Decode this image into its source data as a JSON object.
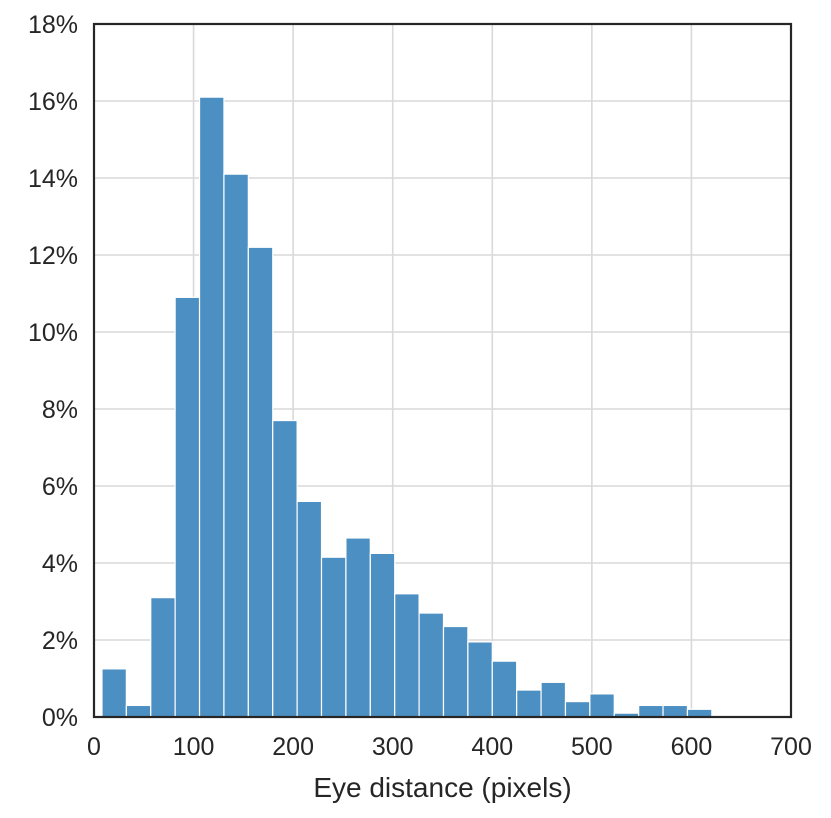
{
  "chart_data": {
    "type": "bar",
    "title": "",
    "xlabel": "Eye distance (pixels)",
    "ylabel": "",
    "xlim": [
      0,
      700
    ],
    "ylim": [
      0,
      18
    ],
    "x_ticks": [
      0,
      100,
      200,
      300,
      400,
      500,
      600,
      700
    ],
    "x_tick_labels": [
      "0",
      "100",
      "200",
      "300",
      "400",
      "500",
      "600",
      "700"
    ],
    "y_ticks": [
      0,
      2,
      4,
      6,
      8,
      10,
      12,
      14,
      16,
      18
    ],
    "y_tick_labels": [
      "0%",
      "2%",
      "4%",
      "6%",
      "8%",
      "10%",
      "12%",
      "14%",
      "16%",
      "18%"
    ],
    "grid": true,
    "bar_color": "#4c8fc2",
    "bins": [
      {
        "x0": 8.0,
        "x1": 32.5,
        "value": 1.25
      },
      {
        "x0": 32.5,
        "x1": 57.0,
        "value": 0.3
      },
      {
        "x0": 57.0,
        "x1": 81.5,
        "value": 3.1
      },
      {
        "x0": 81.5,
        "x1": 106.0,
        "value": 10.9
      },
      {
        "x0": 106.0,
        "x1": 130.5,
        "value": 16.1
      },
      {
        "x0": 130.5,
        "x1": 155.0,
        "value": 14.1
      },
      {
        "x0": 155.0,
        "x1": 179.5,
        "value": 12.2
      },
      {
        "x0": 179.5,
        "x1": 204.0,
        "value": 7.7
      },
      {
        "x0": 204.0,
        "x1": 228.5,
        "value": 5.6
      },
      {
        "x0": 228.5,
        "x1": 253.0,
        "value": 4.15
      },
      {
        "x0": 253.0,
        "x1": 277.5,
        "value": 4.65
      },
      {
        "x0": 277.5,
        "x1": 302.0,
        "value": 4.25
      },
      {
        "x0": 302.0,
        "x1": 326.5,
        "value": 3.2
      },
      {
        "x0": 326.5,
        "x1": 351.0,
        "value": 2.7
      },
      {
        "x0": 351.0,
        "x1": 375.5,
        "value": 2.35
      },
      {
        "x0": 375.5,
        "x1": 400.0,
        "value": 1.95
      },
      {
        "x0": 400.0,
        "x1": 424.5,
        "value": 1.45
      },
      {
        "x0": 424.5,
        "x1": 449.0,
        "value": 0.7
      },
      {
        "x0": 449.0,
        "x1": 473.5,
        "value": 0.9
      },
      {
        "x0": 473.5,
        "x1": 498.0,
        "value": 0.4
      },
      {
        "x0": 498.0,
        "x1": 522.5,
        "value": 0.6
      },
      {
        "x0": 522.5,
        "x1": 547.0,
        "value": 0.1
      },
      {
        "x0": 547.0,
        "x1": 571.5,
        "value": 0.3
      },
      {
        "x0": 571.5,
        "x1": 596.0,
        "value": 0.3
      },
      {
        "x0": 596.0,
        "x1": 620.5,
        "value": 0.2
      }
    ]
  }
}
